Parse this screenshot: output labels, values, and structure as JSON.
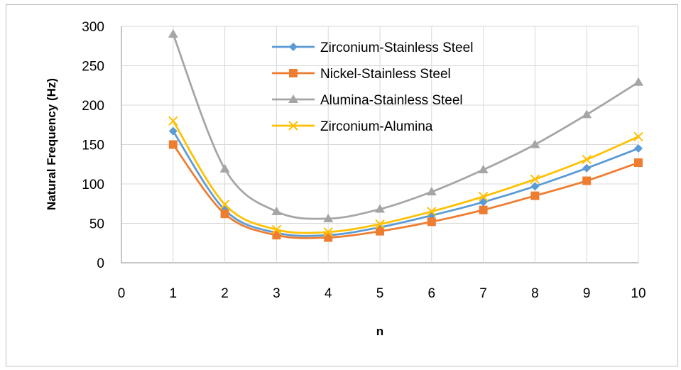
{
  "chart_data": {
    "type": "line",
    "title": "",
    "xlabel": "n",
    "ylabel": "Natural Frequency (Hz)",
    "xlim": [
      0,
      10
    ],
    "ylim": [
      0,
      300
    ],
    "xticks": [
      0,
      1,
      2,
      3,
      4,
      5,
      6,
      7,
      8,
      9,
      10
    ],
    "yticks": [
      0,
      50,
      100,
      150,
      200,
      250,
      300
    ],
    "grid": true,
    "legend_position": "top-center",
    "smooth": true,
    "x": [
      1,
      2,
      3,
      4,
      5,
      6,
      7,
      8,
      9,
      10
    ],
    "series": [
      {
        "name": "Zirconium-Stainless Steel",
        "color": "#5b9bd5",
        "marker": "diamond",
        "values": [
          167,
          67,
          38,
          35,
          45,
          60,
          77,
          97,
          120,
          145
        ]
      },
      {
        "name": "Nickel-Stainless Steel",
        "color": "#ed7d31",
        "marker": "square",
        "values": [
          150,
          62,
          35,
          32,
          40,
          52,
          67,
          85,
          104,
          127
        ]
      },
      {
        "name": "Alumina-Stainless Steel",
        "color": "#a5a5a5",
        "marker": "triangle",
        "values": [
          290,
          119,
          65,
          56,
          68,
          90,
          118,
          150,
          188,
          229
        ]
      },
      {
        "name": "Zirconium-Alumina",
        "color": "#ffc000",
        "marker": "x",
        "values": [
          180,
          74,
          42,
          39,
          49,
          65,
          84,
          106,
          131,
          160
        ]
      }
    ]
  }
}
